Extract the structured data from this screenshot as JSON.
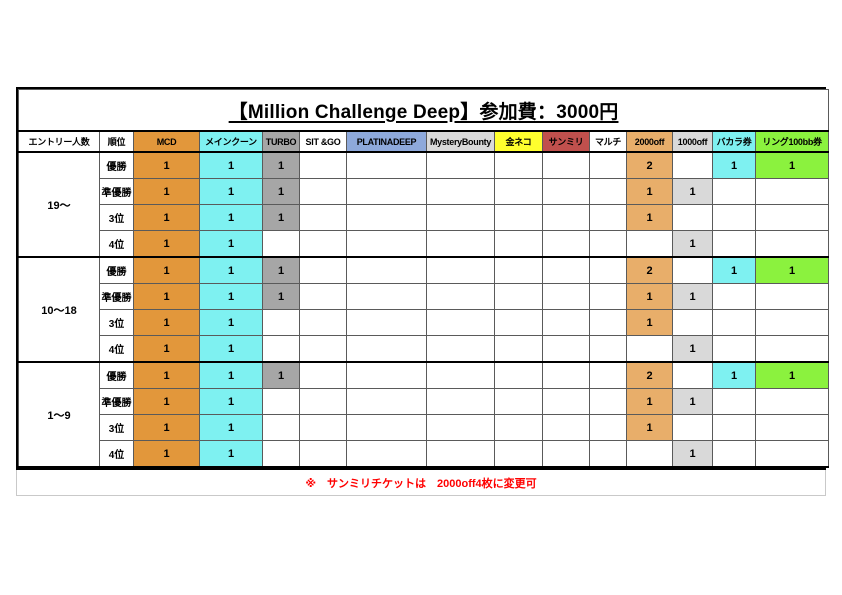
{
  "table": {
    "title": "【Million Challenge Deep】参加費：3000円",
    "note": "※　サンミリチケットは　2000off4枚に変更可",
    "note_color": "#ff0000",
    "colors": {
      "orange": "#E2973B",
      "cyan": "#7EF1F1",
      "gray": "#A6A6A6",
      "tan": "#E8AE6A",
      "lightgray": "#D9D9D9",
      "lime": "#8BF23E"
    },
    "columns": [
      {
        "label": "エントリー人数",
        "bg": "#FFFFFF"
      },
      {
        "label": "順位",
        "bg": "#FFFFFF"
      },
      {
        "label": "MCD",
        "bg": "#E2973B"
      },
      {
        "label": "メインクーン",
        "bg": "#7EF1F1"
      },
      {
        "label": "TURBO",
        "bg": "#A6A6A6"
      },
      {
        "label": "SIT &GO",
        "bg": "#FFFFFF"
      },
      {
        "label": "PLATINADEEP",
        "bg": "#8EA9DB"
      },
      {
        "label": "MysteryBounty",
        "bg": "#D9D9D9"
      },
      {
        "label": "金ネコ",
        "bg": "#FFFF2E"
      },
      {
        "label": "サンミリ",
        "bg": "#C0504D"
      },
      {
        "label": "マルチ",
        "bg": "#FFFFFF"
      },
      {
        "label": "2000off",
        "bg": "#E8AE6A"
      },
      {
        "label": "1000off",
        "bg": "#D9D9D9"
      },
      {
        "label": "バカラ券",
        "bg": "#7EF1F1"
      },
      {
        "label": "リング100bb券",
        "bg": "#8BF23E"
      }
    ],
    "groups": [
      {
        "entry": "19～",
        "rows": [
          {
            "rank": "優勝",
            "values": [
              "1",
              "1",
              "1",
              "",
              "",
              "",
              "",
              "",
              "",
              "2",
              "",
              "1",
              "1"
            ],
            "fills": [
              "orange",
              "cyan",
              "gray",
              "",
              "",
              "",
              "",
              "",
              "",
              "tan",
              "",
              "cyan",
              "lime"
            ]
          },
          {
            "rank": "準優勝",
            "values": [
              "1",
              "1",
              "1",
              "",
              "",
              "",
              "",
              "",
              "",
              "1",
              "1",
              "",
              ""
            ],
            "fills": [
              "orange",
              "cyan",
              "gray",
              "",
              "",
              "",
              "",
              "",
              "",
              "tan",
              "lightgray",
              "",
              ""
            ]
          },
          {
            "rank": "3位",
            "values": [
              "1",
              "1",
              "1",
              "",
              "",
              "",
              "",
              "",
              "",
              "1",
              "",
              "",
              ""
            ],
            "fills": [
              "orange",
              "cyan",
              "gray",
              "",
              "",
              "",
              "",
              "",
              "",
              "tan",
              "",
              "",
              ""
            ]
          },
          {
            "rank": "4位",
            "values": [
              "1",
              "1",
              "",
              "",
              "",
              "",
              "",
              "",
              "",
              "",
              "1",
              "",
              ""
            ],
            "fills": [
              "orange",
              "cyan",
              "",
              "",
              "",
              "",
              "",
              "",
              "",
              "",
              "lightgray",
              "",
              ""
            ]
          }
        ]
      },
      {
        "entry": "10～18",
        "rows": [
          {
            "rank": "優勝",
            "values": [
              "1",
              "1",
              "1",
              "",
              "",
              "",
              "",
              "",
              "",
              "2",
              "",
              "1",
              "1"
            ],
            "fills": [
              "orange",
              "cyan",
              "gray",
              "",
              "",
              "",
              "",
              "",
              "",
              "tan",
              "",
              "cyan",
              "lime"
            ]
          },
          {
            "rank": "準優勝",
            "values": [
              "1",
              "1",
              "1",
              "",
              "",
              "",
              "",
              "",
              "",
              "1",
              "1",
              "",
              ""
            ],
            "fills": [
              "orange",
              "cyan",
              "gray",
              "",
              "",
              "",
              "",
              "",
              "",
              "tan",
              "lightgray",
              "",
              ""
            ]
          },
          {
            "rank": "3位",
            "values": [
              "1",
              "1",
              "",
              "",
              "",
              "",
              "",
              "",
              "",
              "1",
              "",
              "",
              ""
            ],
            "fills": [
              "orange",
              "cyan",
              "",
              "",
              "",
              "",
              "",
              "",
              "",
              "tan",
              "",
              "",
              ""
            ]
          },
          {
            "rank": "4位",
            "values": [
              "1",
              "1",
              "",
              "",
              "",
              "",
              "",
              "",
              "",
              "",
              "1",
              "",
              ""
            ],
            "fills": [
              "orange",
              "cyan",
              "",
              "",
              "",
              "",
              "",
              "",
              "",
              "",
              "lightgray",
              "",
              ""
            ]
          }
        ]
      },
      {
        "entry": "1～9",
        "rows": [
          {
            "rank": "優勝",
            "values": [
              "1",
              "1",
              "1",
              "",
              "",
              "",
              "",
              "",
              "",
              "2",
              "",
              "1",
              "1"
            ],
            "fills": [
              "orange",
              "cyan",
              "gray",
              "",
              "",
              "",
              "",
              "",
              "",
              "tan",
              "",
              "cyan",
              "lime"
            ]
          },
          {
            "rank": "準優勝",
            "values": [
              "1",
              "1",
              "",
              "",
              "",
              "",
              "",
              "",
              "",
              "1",
              "1",
              "",
              ""
            ],
            "fills": [
              "orange",
              "cyan",
              "",
              "",
              "",
              "",
              "",
              "",
              "",
              "tan",
              "lightgray",
              "",
              ""
            ]
          },
          {
            "rank": "3位",
            "values": [
              "1",
              "1",
              "",
              "",
              "",
              "",
              "",
              "",
              "",
              "1",
              "",
              "",
              ""
            ],
            "fills": [
              "orange",
              "cyan",
              "",
              "",
              "",
              "",
              "",
              "",
              "",
              "tan",
              "",
              "",
              ""
            ]
          },
          {
            "rank": "4位",
            "values": [
              "1",
              "1",
              "",
              "",
              "",
              "",
              "",
              "",
              "",
              "",
              "1",
              "",
              ""
            ],
            "fills": [
              "orange",
              "cyan",
              "",
              "",
              "",
              "",
              "",
              "",
              "",
              "",
              "lightgray",
              "",
              ""
            ]
          }
        ]
      }
    ]
  }
}
